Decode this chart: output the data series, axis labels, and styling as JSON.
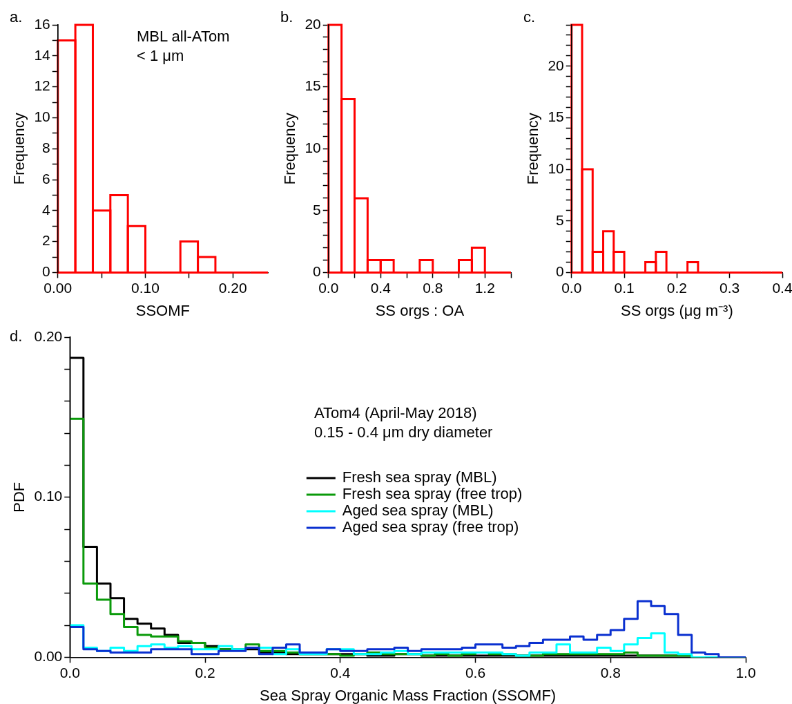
{
  "chart_data": [
    {
      "type": "histogram",
      "xlabel": "SSOMF",
      "ylabel": "Frequency",
      "annotations": [
        "a.",
        "MBL all-ATom",
        "< 1 μm"
      ],
      "color": "#ff0000",
      "bins": [
        0,
        0.02,
        0.04,
        0.06,
        0.08,
        0.1,
        0.12,
        0.14,
        0.16,
        0.18,
        0.2,
        0.22,
        0.24
      ],
      "values": [
        15,
        16,
        4,
        5,
        3,
        0,
        0,
        2,
        1,
        0,
        0,
        0
      ],
      "xlim": [
        0,
        0.24
      ],
      "ylim": [
        0,
        16
      ],
      "xticks": [
        {
          "value": 0,
          "label": "0.00"
        },
        {
          "value": 0.05,
          "label": null
        },
        {
          "value": 0.1,
          "label": "0.10"
        },
        {
          "value": 0.15,
          "label": null
        },
        {
          "value": 0.2,
          "label": "0.20"
        }
      ],
      "yticks": [
        0,
        {
          "value": 1,
          "label": null
        },
        2,
        {
          "value": 3,
          "label": null
        },
        4,
        {
          "value": 5,
          "label": null
        },
        6,
        {
          "value": 7,
          "label": null
        },
        8,
        {
          "value": 9,
          "label": null
        },
        10,
        {
          "value": 11,
          "label": null
        },
        12,
        {
          "value": 13,
          "label": null
        },
        14,
        {
          "value": 15,
          "label": null
        },
        16
      ],
      "grid": false,
      "legend": false
    },
    {
      "type": "histogram",
      "xlabel": "SS orgs : OA",
      "ylabel": "Frequency",
      "annotations": [
        "b."
      ],
      "color": "#ff0000",
      "bins": [
        0,
        0.1,
        0.2,
        0.3,
        0.4,
        0.5,
        0.6,
        0.7,
        0.8,
        0.9,
        1.0,
        1.1,
        1.2,
        1.3,
        1.4
      ],
      "values": [
        20,
        14,
        6,
        1,
        1,
        0,
        0,
        1,
        0,
        0,
        1,
        2,
        0,
        0
      ],
      "xlim": [
        0,
        1.4
      ],
      "ylim": [
        0,
        20
      ],
      "xticks": [
        {
          "value": 0,
          "label": "0.0"
        },
        {
          "value": 0.2,
          "label": null
        },
        {
          "value": 0.4,
          "label": "0.4"
        },
        {
          "value": 0.6,
          "label": null
        },
        {
          "value": 0.8,
          "label": "0.8"
        },
        {
          "value": 1.0,
          "label": null
        },
        {
          "value": 1.2,
          "label": "1.2"
        },
        {
          "value": 1.4,
          "label": null
        }
      ],
      "yticks": [
        0,
        {
          "value": 1,
          "label": null
        },
        {
          "value": 2,
          "label": null
        },
        {
          "value": 3,
          "label": null
        },
        {
          "value": 4,
          "label": null
        },
        5,
        {
          "value": 6,
          "label": null
        },
        {
          "value": 7,
          "label": null
        },
        {
          "value": 8,
          "label": null
        },
        {
          "value": 9,
          "label": null
        },
        10,
        {
          "value": 11,
          "label": null
        },
        {
          "value": 12,
          "label": null
        },
        {
          "value": 13,
          "label": null
        },
        {
          "value": 14,
          "label": null
        },
        15,
        {
          "value": 16,
          "label": null
        },
        {
          "value": 17,
          "label": null
        },
        {
          "value": 18,
          "label": null
        },
        {
          "value": 19,
          "label": null
        },
        20
      ],
      "grid": false,
      "legend": false
    },
    {
      "type": "histogram",
      "xlabel": "SS orgs (μg m⁻³)",
      "ylabel": "Frequency",
      "annotations": [
        "c."
      ],
      "color": "#ff0000",
      "bins": [
        0,
        0.02,
        0.04,
        0.06,
        0.08,
        0.1,
        0.12,
        0.14,
        0.16,
        0.18,
        0.2,
        0.22,
        0.24,
        0.26,
        0.28,
        0.3,
        0.32,
        0.34,
        0.36,
        0.38,
        0.4
      ],
      "values": [
        24,
        10,
        2,
        4,
        2,
        0,
        0,
        1,
        2,
        0,
        0,
        1,
        0,
        0,
        0,
        0,
        0,
        0,
        0,
        0
      ],
      "xlim": [
        0,
        0.4
      ],
      "ylim": [
        0,
        24
      ],
      "xticks": [
        {
          "value": 0,
          "label": "0.0"
        },
        {
          "value": 0.1,
          "label": "0.1"
        },
        {
          "value": 0.2,
          "label": "0.2"
        },
        {
          "value": 0.3,
          "label": "0.3"
        },
        {
          "value": 0.4,
          "label": "0.4"
        }
      ],
      "yticks": [
        0,
        {
          "value": 1,
          "label": null
        },
        {
          "value": 2,
          "label": null
        },
        {
          "value": 3,
          "label": null
        },
        {
          "value": 4,
          "label": null
        },
        5,
        {
          "value": 6,
          "label": null
        },
        {
          "value": 7,
          "label": null
        },
        {
          "value": 8,
          "label": null
        },
        {
          "value": 9,
          "label": null
        },
        10,
        {
          "value": 11,
          "label": null
        },
        {
          "value": 12,
          "label": null
        },
        {
          "value": 13,
          "label": null
        },
        {
          "value": 14,
          "label": null
        },
        15,
        {
          "value": 16,
          "label": null
        },
        {
          "value": 17,
          "label": null
        },
        {
          "value": 18,
          "label": null
        },
        {
          "value": 19,
          "label": null
        },
        20,
        {
          "value": 21,
          "label": null
        },
        {
          "value": 22,
          "label": null
        },
        {
          "value": 23,
          "label": null
        },
        {
          "value": 24,
          "label": null
        }
      ],
      "grid": false,
      "legend": false
    },
    {
      "type": "step",
      "xlabel": "Sea Spray Organic Mass Fraction (SSOMF)",
      "ylabel": "PDF",
      "annotations": [
        "d.",
        "ATom4 (April-May 2018)",
        "0.15 - 0.4 μm dry diameter"
      ],
      "xlim": [
        0,
        1
      ],
      "ylim": [
        0,
        0.2
      ],
      "xticks": [
        {
          "value": 0,
          "label": "0.0"
        },
        {
          "value": 0.2,
          "label": "0.2"
        },
        {
          "value": 0.4,
          "label": "0.4"
        },
        {
          "value": 0.6,
          "label": "0.6"
        },
        {
          "value": 0.8,
          "label": "0.8"
        },
        {
          "value": 1,
          "label": "1.0"
        }
      ],
      "yticks": [
        {
          "value": 0,
          "label": "0.00"
        },
        {
          "value": 0.02,
          "label": null
        },
        {
          "value": 0.04,
          "label": null
        },
        {
          "value": 0.06,
          "label": null
        },
        {
          "value": 0.08,
          "label": null
        },
        {
          "value": 0.1,
          "label": "0.10"
        },
        {
          "value": 0.12,
          "label": null
        },
        {
          "value": 0.14,
          "label": null
        },
        {
          "value": 0.16,
          "label": null
        },
        {
          "value": 0.18,
          "label": null
        },
        {
          "value": 0.2,
          "label": "0.20"
        }
      ],
      "grid": false,
      "legend": "center",
      "marker": "none",
      "line_style": "solid",
      "x": [
        0,
        0.02,
        0.04,
        0.06,
        0.08,
        0.1,
        0.12,
        0.14,
        0.16,
        0.18,
        0.2,
        0.22,
        0.24,
        0.26,
        0.28,
        0.3,
        0.32,
        0.34,
        0.36,
        0.38,
        0.4,
        0.42,
        0.44,
        0.46,
        0.48,
        0.5,
        0.52,
        0.54,
        0.56,
        0.58,
        0.6,
        0.62,
        0.64,
        0.66,
        0.68,
        0.7,
        0.72,
        0.74,
        0.76,
        0.78,
        0.8,
        0.82,
        0.84,
        0.86,
        0.88,
        0.9,
        0.92,
        0.94,
        0.96,
        0.98,
        1.0
      ],
      "series": [
        {
          "name": "Fresh sea spray (MBL)",
          "color": "#000000",
          "values": [
            0.187,
            0.069,
            0.046,
            0.037,
            0.024,
            0.021,
            0.018,
            0.014,
            0.009,
            0.009,
            0.007,
            0.005,
            0.005,
            0.005,
            0.003,
            0.003,
            0.002,
            0.002,
            0.002,
            0.002,
            0.002,
            0.002,
            0.001,
            0.001,
            0.002,
            0.002,
            0.001,
            0.001,
            0.001,
            0.001,
            0.001,
            0.001,
            0.001,
            0.001,
            0.001,
            0.001,
            0.001,
            0.001,
            0.001,
            0.001,
            0.001,
            0.001,
            0.001,
            0.001,
            0.001,
            0.001,
            0,
            0,
            0,
            0,
            0
          ]
        },
        {
          "name": "Fresh sea spray (free trop)",
          "color": "#0a9a0a",
          "values": [
            0.149,
            0.046,
            0.036,
            0.027,
            0.019,
            0.014,
            0.013,
            0.013,
            0.01,
            0.009,
            0.006,
            0.005,
            0.005,
            0.008,
            0.004,
            0.004,
            0.003,
            0.002,
            0.002,
            0.002,
            0.001,
            0.002,
            0.003,
            0.002,
            0.002,
            0.002,
            0.001,
            0.002,
            0.001,
            0.002,
            0.003,
            0.002,
            0.002,
            0.001,
            0.001,
            0.002,
            0.002,
            0.002,
            0.002,
            0.002,
            0.002,
            0.003,
            0.001,
            0.001,
            0.001,
            0.001,
            0,
            0,
            null,
            null,
            null
          ]
        },
        {
          "name": "Aged sea spray (MBL)",
          "color": "#00ffff",
          "values": [
            0.02,
            0.006,
            0.004,
            0.006,
            0.004,
            0.007,
            0.008,
            0.006,
            0.007,
            0.005,
            0.005,
            0.007,
            0.005,
            0.006,
            0.006,
            0.002,
            0.005,
            0.002,
            0.002,
            0.005,
            0.005,
            0.002,
            0.002,
            0.003,
            0.004,
            0.002,
            0.003,
            0.003,
            0.003,
            0.003,
            0.003,
            0.003,
            0.002,
            0.001,
            0.003,
            0.003,
            0.008,
            0.003,
            0.003,
            0.006,
            0.004,
            0.008,
            0.012,
            0.015,
            0.003,
            0.002,
            0,
            0,
            0,
            0,
            0
          ]
        },
        {
          "name": "Aged sea spray (free trop)",
          "color": "#0a30d0",
          "values": [
            0.019,
            0.005,
            0.004,
            0.003,
            0.003,
            0.003,
            0.005,
            0.005,
            0.005,
            0.002,
            0.002,
            0.004,
            0.004,
            0.006,
            0.002,
            0.006,
            0.008,
            0.003,
            0.003,
            0.005,
            0.004,
            0.004,
            0.005,
            0.005,
            0.006,
            0.004,
            0.005,
            0.005,
            0.005,
            0.006,
            0.008,
            0.008,
            0.006,
            0.007,
            0.009,
            0.011,
            0.011,
            0.013,
            0.011,
            0.014,
            0.017,
            0.024,
            0.035,
            0.032,
            0.027,
            0.014,
            0.003,
            0.002,
            0,
            0,
            0
          ]
        }
      ]
    }
  ]
}
